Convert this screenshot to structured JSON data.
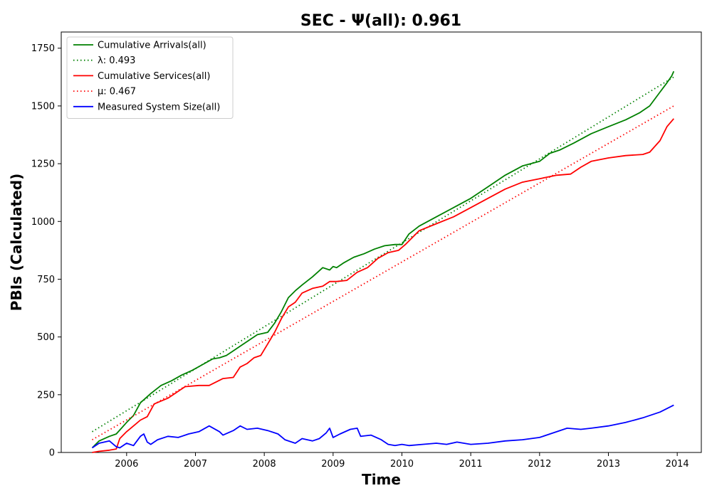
{
  "chart_data": {
    "type": "line",
    "title": "SEC -  Ψ(all): 0.961",
    "xlabel": "Time",
    "ylabel": "PBIs (Calculated)",
    "xlim": [
      2005.05,
      2014.35
    ],
    "ylim": [
      0,
      1820
    ],
    "x_ticks": [
      2006,
      2007,
      2008,
      2009,
      2010,
      2011,
      2012,
      2013,
      2014
    ],
    "y_ticks": [
      0,
      250,
      500,
      750,
      1000,
      1250,
      1500,
      1750
    ],
    "grid": false,
    "legend_position": "top-left",
    "series": [
      {
        "name": "Cumulative Arrivals(all)",
        "color": "#008000",
        "style": "solid",
        "x": [
          2005.5,
          2005.6,
          2005.75,
          2005.85,
          2006.0,
          2006.1,
          2006.2,
          2006.35,
          2006.5,
          2006.65,
          2006.8,
          2006.95,
          2007.1,
          2007.25,
          2007.35,
          2007.45,
          2007.55,
          2007.65,
          2007.8,
          2007.9,
          2008.05,
          2008.15,
          2008.25,
          2008.35,
          2008.45,
          2008.55,
          2008.7,
          2008.85,
          2008.95,
          2009.0,
          2009.05,
          2009.15,
          2009.3,
          2009.45,
          2009.6,
          2009.75,
          2009.9,
          2010.0,
          2010.1,
          2010.25,
          2010.5,
          2010.75,
          2011.0,
          2011.25,
          2011.5,
          2011.75,
          2012.0,
          2012.15,
          2012.3,
          2012.5,
          2012.75,
          2013.0,
          2013.25,
          2013.45,
          2013.6,
          2013.75,
          2013.85,
          2013.92,
          2013.95
        ],
        "y": [
          20,
          50,
          70,
          80,
          130,
          160,
          215,
          255,
          290,
          310,
          335,
          355,
          380,
          405,
          410,
          420,
          440,
          460,
          490,
          510,
          520,
          560,
          610,
          670,
          700,
          725,
          760,
          800,
          790,
          805,
          800,
          820,
          845,
          860,
          880,
          895,
          900,
          900,
          945,
          980,
          1020,
          1060,
          1100,
          1150,
          1200,
          1240,
          1260,
          1295,
          1310,
          1340,
          1380,
          1410,
          1440,
          1470,
          1500,
          1560,
          1600,
          1630,
          1650
        ]
      },
      {
        "name": "λ: 0.493",
        "color": "#008000",
        "style": "dotted",
        "x": [
          2005.5,
          2013.95
        ],
        "y": [
          90,
          1625
        ]
      },
      {
        "name": "Cumulative Services(all)",
        "color": "#ff0000",
        "style": "solid",
        "x": [
          2005.5,
          2005.6,
          2005.75,
          2005.85,
          2005.9,
          2006.0,
          2006.1,
          2006.2,
          2006.3,
          2006.4,
          2006.6,
          2006.7,
          2006.85,
          2007.05,
          2007.2,
          2007.4,
          2007.55,
          2007.65,
          2007.75,
          2007.85,
          2007.95,
          2008.05,
          2008.15,
          2008.25,
          2008.35,
          2008.45,
          2008.55,
          2008.7,
          2008.85,
          2008.95,
          2009.05,
          2009.2,
          2009.35,
          2009.5,
          2009.65,
          2009.8,
          2009.95,
          2010.05,
          2010.25,
          2010.5,
          2010.75,
          2011.0,
          2011.25,
          2011.5,
          2011.75,
          2012.0,
          2012.25,
          2012.45,
          2012.6,
          2012.75,
          2013.0,
          2013.25,
          2013.5,
          2013.6,
          2013.75,
          2013.85,
          2013.95
        ],
        "y": [
          0,
          5,
          10,
          15,
          60,
          90,
          115,
          140,
          155,
          210,
          235,
          255,
          285,
          290,
          290,
          320,
          325,
          370,
          385,
          410,
          420,
          470,
          520,
          580,
          630,
          650,
          690,
          710,
          720,
          740,
          740,
          745,
          780,
          800,
          840,
          865,
          875,
          900,
          960,
          990,
          1020,
          1060,
          1100,
          1140,
          1170,
          1185,
          1200,
          1205,
          1235,
          1260,
          1275,
          1285,
          1290,
          1300,
          1350,
          1410,
          1445
        ]
      },
      {
        "name": "μ: 0.467",
        "color": "#ff0000",
        "style": "dotted",
        "x": [
          2005.5,
          2013.95
        ],
        "y": [
          55,
          1500
        ]
      },
      {
        "name": "Measured System Size(all)",
        "color": "#0000ff",
        "style": "solid",
        "x": [
          2005.5,
          2005.6,
          2005.75,
          2005.85,
          2005.9,
          2006.0,
          2006.1,
          2006.2,
          2006.25,
          2006.3,
          2006.35,
          2006.45,
          2006.6,
          2006.75,
          2006.9,
          2007.05,
          2007.2,
          2007.35,
          2007.4,
          2007.55,
          2007.65,
          2007.75,
          2007.9,
          2008.05,
          2008.2,
          2008.3,
          2008.45,
          2008.55,
          2008.7,
          2008.8,
          2008.9,
          2008.95,
          2009.0,
          2009.1,
          2009.25,
          2009.35,
          2009.4,
          2009.55,
          2009.7,
          2009.8,
          2009.9,
          2010.0,
          2010.1,
          2010.3,
          2010.5,
          2010.65,
          2010.8,
          2011.0,
          2011.25,
          2011.5,
          2011.75,
          2012.0,
          2012.2,
          2012.4,
          2012.6,
          2012.75,
          2013.0,
          2013.25,
          2013.5,
          2013.75,
          2013.95
        ],
        "y": [
          20,
          40,
          50,
          25,
          20,
          40,
          30,
          70,
          80,
          45,
          35,
          55,
          70,
          65,
          80,
          90,
          115,
          90,
          75,
          95,
          115,
          100,
          105,
          95,
          80,
          55,
          40,
          60,
          50,
          60,
          85,
          105,
          65,
          80,
          100,
          105,
          70,
          75,
          55,
          35,
          30,
          35,
          30,
          35,
          40,
          35,
          45,
          35,
          40,
          50,
          55,
          65,
          85,
          105,
          100,
          105,
          115,
          130,
          150,
          175,
          205
        ]
      }
    ]
  }
}
